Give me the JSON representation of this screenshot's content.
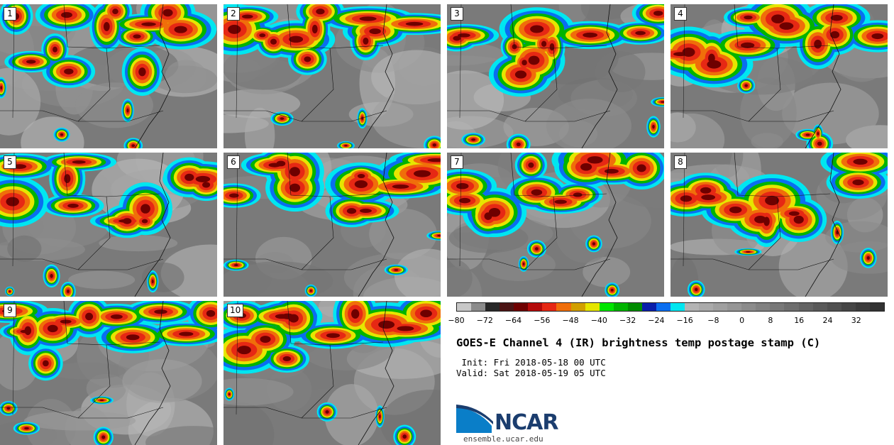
{
  "panels": [
    {
      "label": "1"
    },
    {
      "label": "2"
    },
    {
      "label": "3"
    },
    {
      "label": "4"
    },
    {
      "label": "5"
    },
    {
      "label": "6"
    },
    {
      "label": "7"
    },
    {
      "label": "8"
    },
    {
      "label": "9"
    },
    {
      "label": "10"
    }
  ],
  "colorbar": {
    "colors": [
      "#c8c8c8",
      "#8c8c8c",
      "#282828",
      "#4b1414",
      "#6e0000",
      "#b40a0a",
      "#e62814",
      "#f06e0a",
      "#d2a000",
      "#e6e600",
      "#00e600",
      "#00b400",
      "#008c00",
      "#0a1eaa",
      "#0a6ef0",
      "#00e6f0",
      "#b4b4b4",
      "#aaaaaa",
      "#a0a0a0",
      "#969696",
      "#8c8c8c",
      "#828282",
      "#787878",
      "#6e6e6e",
      "#646464",
      "#5a5a5a",
      "#505050",
      "#464646",
      "#3c3c3c",
      "#323232"
    ],
    "ticks": [
      "−80",
      "−72",
      "−64",
      "−56",
      "−48",
      "−40",
      "−32",
      "−24",
      "−16",
      "−8",
      "0",
      "8",
      "16",
      "24",
      "32"
    ],
    "range": [
      -80,
      40
    ]
  },
  "title": "GOES-E Channel 4 (IR) brightness temp postage stamp (C)",
  "init": " Init: Fri 2018-05-18 00 UTC",
  "valid": "Valid: Sat 2018-05-19 05 UTC",
  "logo": {
    "name": "NCAR",
    "url": "ensemble.ucar.edu"
  }
}
